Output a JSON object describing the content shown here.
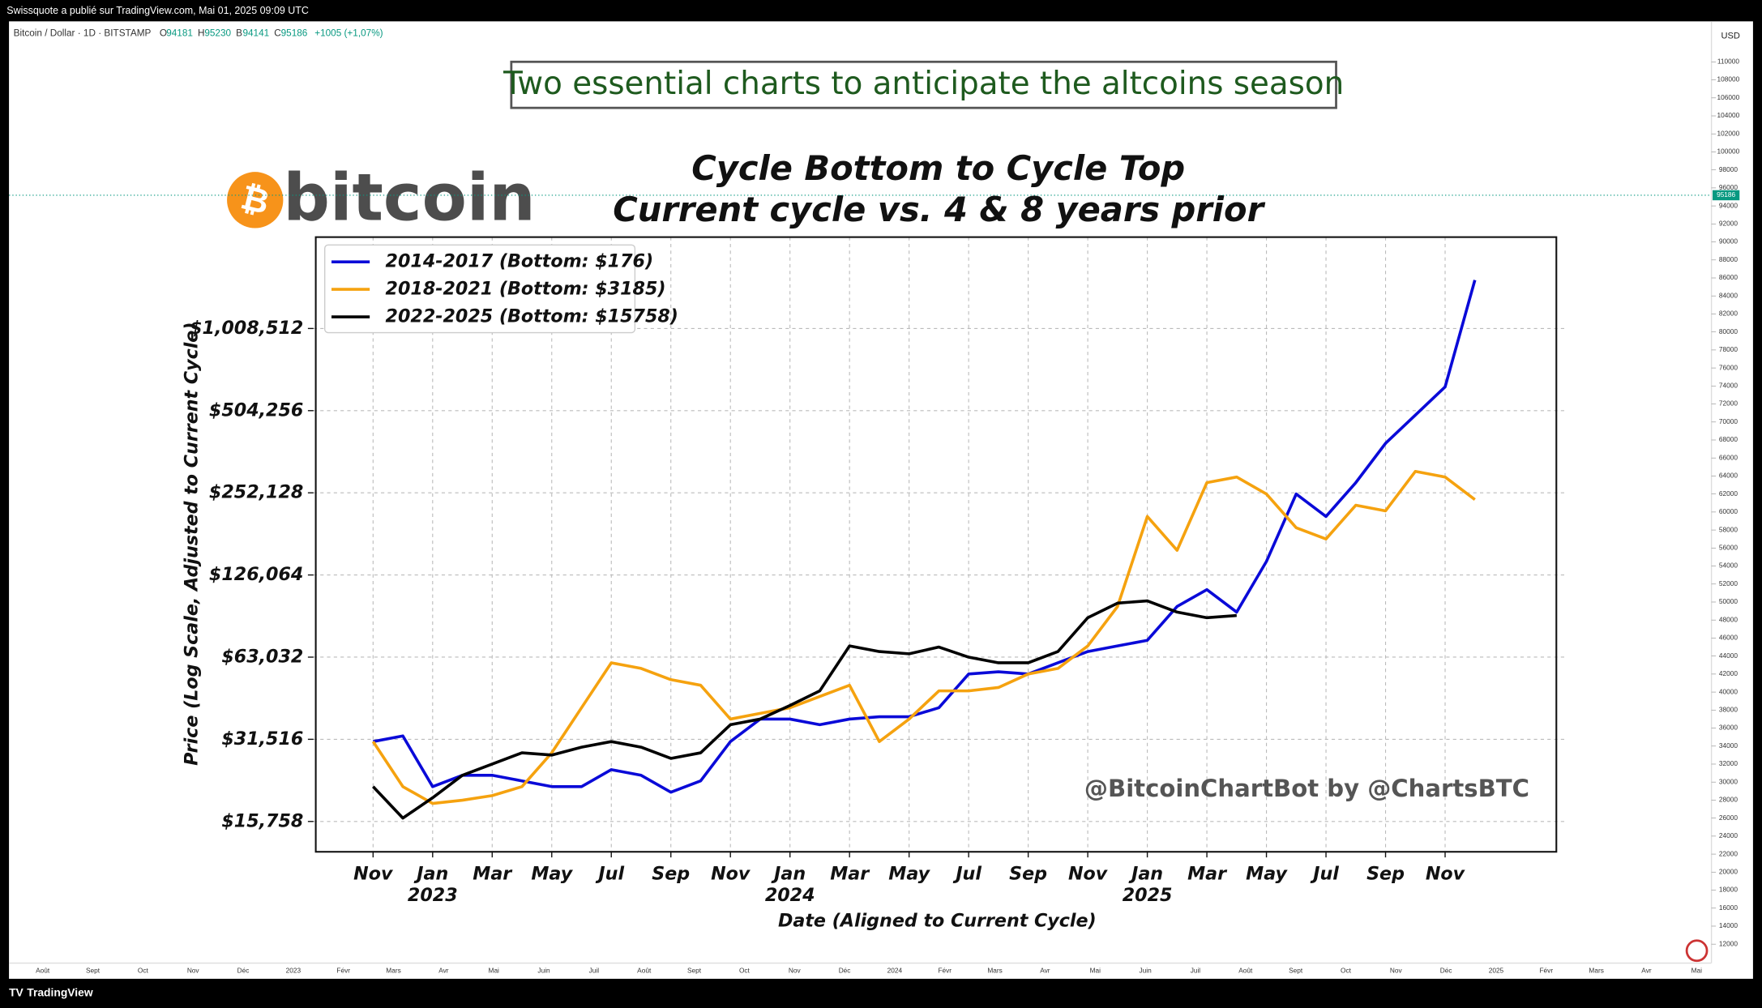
{
  "header": {
    "publisher": "Swissquote a publié sur TradingView.com, Mai 01, 2025 09:09 UTC"
  },
  "symbol_bar": {
    "symbol": "Bitcoin / Dollar · 1D · BITSTAMP",
    "ohlc": [
      {
        "label": "O",
        "value": 94181
      },
      {
        "label": "H",
        "value": 95230
      },
      {
        "label": "B",
        "value": 94141
      },
      {
        "label": "C",
        "value": 95186
      }
    ],
    "change": "+1005 (+1,07%)"
  },
  "price_axis": {
    "currency": "USD",
    "ylim": [
      9900,
      114500
    ],
    "last_price": 95186,
    "ticks": [
      12000,
      14000,
      16000,
      18000,
      20000,
      22000,
      24000,
      26000,
      28000,
      30000,
      32000,
      34000,
      36000,
      38000,
      40000,
      42000,
      44000,
      46000,
      48000,
      50000,
      52000,
      54000,
      56000,
      58000,
      60000,
      62000,
      64000,
      66000,
      68000,
      70000,
      72000,
      74000,
      76000,
      78000,
      80000,
      82000,
      84000,
      86000,
      88000,
      90000,
      92000,
      94000,
      96000,
      98000,
      100000,
      102000,
      104000,
      106000,
      108000,
      110000
    ]
  },
  "time_axis": {
    "labels": [
      "Août",
      "Sept",
      "Oct",
      "Nov",
      "Déc",
      "2023",
      "Févr",
      "Mars",
      "Avr",
      "Mai",
      "Juin",
      "Juil",
      "Août",
      "Sept",
      "Oct",
      "Nov",
      "Déc",
      "2024",
      "Févr",
      "Mars",
      "Avr",
      "Mai",
      "Juin",
      "Juil",
      "Août",
      "Sept",
      "Oct",
      "Nov",
      "Déc",
      "2025",
      "Févr",
      "Mars",
      "Avr",
      "Mai"
    ]
  },
  "footer": {
    "brand": "TradingView"
  },
  "banner": "Two essential charts to anticipate the altcoins season",
  "logo": {
    "symbol": "₿",
    "text": "bitcoin"
  },
  "chart_data": {
    "type": "line",
    "title": "Cycle Bottom to Cycle Top",
    "subtitle": "Current cycle vs. 4 & 8 years prior",
    "x_label": "Date (Aligned to Current Cycle)",
    "y_label": "Price (Log Scale, Adjusted to Current Cycle)",
    "watermark": "@BitcoinChartBot by @ChartsBTC",
    "x": [
      "2022-11",
      "2022-12",
      "2023-01",
      "2023-02",
      "2023-03",
      "2023-04",
      "2023-05",
      "2023-06",
      "2023-07",
      "2023-08",
      "2023-09",
      "2023-10",
      "2023-11",
      "2023-12",
      "2024-01",
      "2024-02",
      "2024-03",
      "2024-04",
      "2024-05",
      "2024-06",
      "2024-07",
      "2024-08",
      "2024-09",
      "2024-10",
      "2024-11",
      "2024-12",
      "2025-01",
      "2025-02",
      "2025-03",
      "2025-04",
      "2025-05",
      "2025-06",
      "2025-07",
      "2025-08",
      "2025-09",
      "2025-10",
      "2025-11",
      "2025-12"
    ],
    "series": [
      {
        "name": "2014-2017 (Bottom: $176)",
        "color": "#0a0ad8",
        "values": [
          30930,
          32430,
          21150,
          23260,
          23260,
          22180,
          21150,
          21150,
          24390,
          23260,
          20170,
          22180,
          30930,
          37390,
          37390,
          35660,
          37390,
          38110,
          38110,
          41120,
          54680,
          55710,
          54680,
          60120,
          66090,
          69300,
          72680,
          96610,
          111400,
          92170,
          141300,
          249700,
          206600,
          274600,
          382900,
          485400,
          616000,
          1517000
        ]
      },
      {
        "name": "2018-2021 (Bottom: $3185)",
        "color": "#f5a20f",
        "values": [
          30930,
          21150,
          18340,
          18860,
          19600,
          21150,
          28130,
          41120,
          60120,
          57330,
          52130,
          49720,
          37390,
          39210,
          41120,
          45210,
          49720,
          30930,
          37390,
          47400,
          47400,
          48780,
          54680,
          57330,
          69300,
          96610,
          206600,
          155300,
          274600,
          288000,
          249700,
          187800,
          170800,
          227100,
          216600,
          301900,
          288000,
          238100
        ]
      },
      {
        "name": "2022-2025 (Bottom: $15758)",
        "color": "#000000",
        "values": [
          21150,
          16210,
          19240,
          23260,
          25580,
          28130,
          27590,
          29480,
          30930,
          29480,
          26820,
          28130,
          35660,
          37390,
          41900,
          47400,
          69300,
          66090,
          64840,
          68640,
          63030,
          60120,
          60120,
          66090,
          87880,
          99430,
          101300,
          92170,
          87880,
          89570,
          null,
          null,
          null,
          null,
          null,
          null,
          null,
          null
        ]
      }
    ],
    "log_scale": true,
    "grid": true,
    "legend": "upper left",
    "xlim": [
      "2022-09",
      "2026-03"
    ],
    "xticks": [
      {
        "value": "2022-11",
        "label": "Nov"
      },
      {
        "value": "2023-01",
        "label": "Jan"
      },
      {
        "value": "2023-03",
        "label": "Mar"
      },
      {
        "value": "2023-05",
        "label": "May"
      },
      {
        "value": "2023-07",
        "label": "Jul"
      },
      {
        "value": "2023-09",
        "label": "Sep"
      },
      {
        "value": "2023-11",
        "label": "Nov"
      },
      {
        "value": "2024-01",
        "label": "Jan"
      },
      {
        "value": "2024-03",
        "label": "Mar"
      },
      {
        "value": "2024-05",
        "label": "May"
      },
      {
        "value": "2024-07",
        "label": "Jul"
      },
      {
        "value": "2024-09",
        "label": "Sep"
      },
      {
        "value": "2024-11",
        "label": "Nov"
      },
      {
        "value": "2025-01",
        "label": "Jan"
      },
      {
        "value": "2025-03",
        "label": "Mar"
      },
      {
        "value": "2025-05",
        "label": "May"
      },
      {
        "value": "2025-07",
        "label": "Jul"
      },
      {
        "value": "2025-09",
        "label": "Sep"
      },
      {
        "value": "2025-11",
        "label": "Nov"
      }
    ],
    "x_year_labels": [
      {
        "value": "2023-01",
        "label": "2023"
      },
      {
        "value": "2024-01",
        "label": "2024"
      },
      {
        "value": "2025-01",
        "label": "2025"
      }
    ],
    "ylim": [
      12200,
      2180000
    ],
    "yticks": [
      {
        "value": 15758,
        "label": "$15,758"
      },
      {
        "value": 31516,
        "label": "$31,516"
      },
      {
        "value": 63032,
        "label": "$63,032"
      },
      {
        "value": 126064,
        "label": "$126,064"
      },
      {
        "value": 252128,
        "label": "$252,128"
      },
      {
        "value": 504256,
        "label": "$504,256"
      },
      {
        "value": 1008512,
        "label": "$1,008,512"
      }
    ]
  }
}
